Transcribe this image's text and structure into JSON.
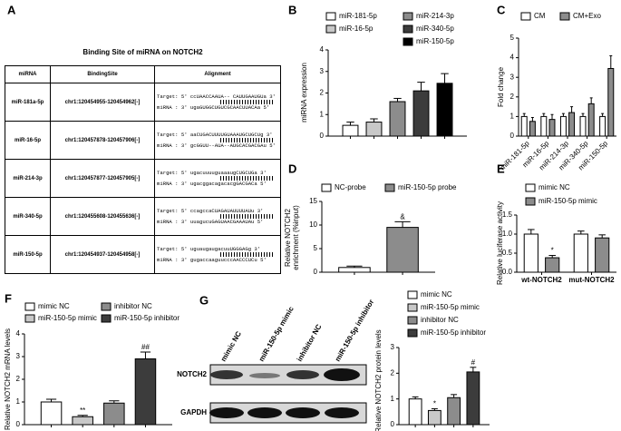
{
  "table": {
    "panel": "A",
    "title": "Binding Site of miRNA on NOTCH2",
    "columns": [
      "miRNA",
      "BindingSite",
      "Alignment"
    ],
    "rows": [
      [
        "miR-181a-5p",
        "chr1:120454955-120454962[-]",
        "Target: 5' ccUAACCAAUA-- CAUUGAAUGUa 3'",
        "miRNA : 3' ugaGUGGCUGUCGCAACUUACAa 5'"
      ],
      [
        "miR-16-5p",
        "chr1:120457878-120457906[-]",
        "Target: 5' aaCUGACUUUUGUAAAUGCUGCUg 3'",
        "miRNA : 3' gcGGUU--AUA--AUGCACGACGAu 5'"
      ],
      [
        "miR-214-3p",
        "chr1:120457877-120457905[-]",
        "Target: 5' ugacuuuuguaaaugCUGCUGa 3'",
        "miRNA : 3' ugacggacagacacgGACGACa 5'"
      ],
      [
        "miR-340-5p",
        "chr1:120455608-120455636[-]",
        "Target: 5' ccagccaCUAGAUAUUUUAUu 3'",
        "miRNA : 3' uuagucuGAGUAACGAAAUAu 5'"
      ],
      [
        "miR-150-5p",
        "chr1:120454937-120454958[-]",
        "Target: 5' uguaugaugacuuUGGGAGg 3'",
        "miRNA : 3' gugaccaaguucccAACCCUCu 5'"
      ]
    ]
  },
  "blot": {
    "panel": "G",
    "lanes": [
      "mimic NC",
      "miR-150-5p mimic",
      "inhibitor NC",
      "miR-150-5p inhibitor"
    ],
    "bands": [
      "NOTCH2",
      "GAPDH"
    ]
  },
  "chart_data": [
    {
      "type": "bar",
      "panel": "B",
      "ylabel": "miRNA expression",
      "categories": [
        null
      ],
      "ylim": [
        0,
        4
      ],
      "yticks": [
        0,
        1,
        2,
        3,
        4
      ],
      "series": [
        {
          "name": "miR-181-5p",
          "color": "#ffffff",
          "values": [
            0.5
          ],
          "errors": [
            0.15
          ]
        },
        {
          "name": "miR-16-5p",
          "color": "#c8c8c8",
          "values": [
            0.65
          ],
          "errors": [
            0.15
          ]
        },
        {
          "name": "miR-214-3p",
          "color": "#8c8c8c",
          "values": [
            1.6
          ],
          "errors": [
            0.15
          ]
        },
        {
          "name": "miR-340-5p",
          "color": "#3c3c3c",
          "values": [
            2.1
          ],
          "errors": [
            0.4
          ]
        },
        {
          "name": "miR-150-5p",
          "color": "#000000",
          "values": [
            2.45
          ],
          "errors": [
            0.45
          ]
        }
      ]
    },
    {
      "type": "bar",
      "panel": "C",
      "ylabel": "Fold change",
      "categories": [
        "miR-181-5p",
        "miR-16-5p",
        "miR-214-3p",
        "miR-340-5p",
        "miR-150-5p"
      ],
      "ylim": [
        0,
        5
      ],
      "yticks": [
        0,
        1,
        2,
        3,
        4,
        5
      ],
      "series": [
        {
          "name": "CM",
          "color": "#ffffff",
          "values": [
            1,
            1,
            1,
            1,
            1
          ],
          "errors": [
            0.15,
            0.15,
            0.15,
            0.15,
            0.15
          ]
        },
        {
          "name": "CM+Exo",
          "color": "#8c8c8c",
          "values": [
            0.75,
            0.85,
            1.2,
            1.65,
            3.45
          ],
          "errors": [
            0.2,
            0.25,
            0.3,
            0.3,
            0.65
          ]
        }
      ]
    },
    {
      "type": "bar",
      "panel": "D",
      "ylabel": [
        "Relative NOTCH2",
        "enrichment (%input)"
      ],
      "categories": [
        null
      ],
      "ylim": [
        0,
        15
      ],
      "yticks": [
        0,
        5,
        10,
        15
      ],
      "series": [
        {
          "name": "NC-probe",
          "color": "#ffffff",
          "values": [
            1
          ],
          "errors": [
            0.3
          ]
        },
        {
          "name": "miR-150-5p probe",
          "color": "#8c8c8c",
          "values": [
            9.5
          ],
          "errors": [
            1.2
          ],
          "annotations": [
            "&"
          ]
        }
      ]
    },
    {
      "type": "bar",
      "panel": "E",
      "ylabel": "Relative luciferase activity",
      "categories": [
        "wt-NOTCH2",
        "mut-NOTCH2"
      ],
      "ylim": [
        0,
        1.5
      ],
      "yticks": [
        {
          "value": 0,
          "label": "0.0"
        },
        0.5,
        {
          "value": 1,
          "label": "1.0"
        },
        1.5
      ],
      "series": [
        {
          "name": "mimic NC",
          "color": "#ffffff",
          "values": [
            1.0,
            1.0
          ],
          "errors": [
            0.12,
            0.08
          ]
        },
        {
          "name": "miR-150-5p mimic",
          "color": "#8c8c8c",
          "values": [
            0.38,
            0.9
          ],
          "errors": [
            0.06,
            0.08
          ],
          "annotations": [
            "*",
            null
          ]
        }
      ]
    },
    {
      "type": "bar",
      "panel": "F",
      "ylabel": "Relative NOTCH2 mRNA levels",
      "categories": [
        null
      ],
      "ylim": [
        0,
        4
      ],
      "yticks": [
        0,
        1,
        2,
        3,
        4
      ],
      "series": [
        {
          "name": "mimic NC",
          "color": "#ffffff",
          "values": [
            1.0
          ],
          "errors": [
            0.12
          ]
        },
        {
          "name": "miR-150-5p mimic",
          "color": "#c8c8c8",
          "values": [
            0.35
          ],
          "errors": [
            0.06
          ],
          "annotations": [
            "**"
          ]
        },
        {
          "name": "inhibitor NC",
          "color": "#8c8c8c",
          "values": [
            0.95
          ],
          "errors": [
            0.1
          ]
        },
        {
          "name": "miR-150-5p inhibitor",
          "color": "#3c3c3c",
          "values": [
            2.9
          ],
          "errors": [
            0.3
          ],
          "annotations": [
            "##"
          ]
        }
      ]
    },
    {
      "type": "bar",
      "ylabel": "Relative NOTCH2 protein levels",
      "categories": [
        null
      ],
      "ylim": [
        0,
        3
      ],
      "yticks": [
        0,
        1,
        2,
        3
      ],
      "series": [
        {
          "name": "mimic NC",
          "color": "#ffffff",
          "values": [
            1.0
          ],
          "errors": [
            0.08
          ]
        },
        {
          "name": "miR-150-5p mimic",
          "color": "#c8c8c8",
          "values": [
            0.55
          ],
          "errors": [
            0.07
          ],
          "annotations": [
            "*"
          ]
        },
        {
          "name": "inhibitor NC",
          "color": "#8c8c8c",
          "values": [
            1.05
          ],
          "errors": [
            0.12
          ]
        },
        {
          "name": "miR-150-5p inhibitor",
          "color": "#3c3c3c",
          "values": [
            2.05
          ],
          "errors": [
            0.18
          ],
          "annotations": [
            "#"
          ]
        }
      ]
    }
  ]
}
